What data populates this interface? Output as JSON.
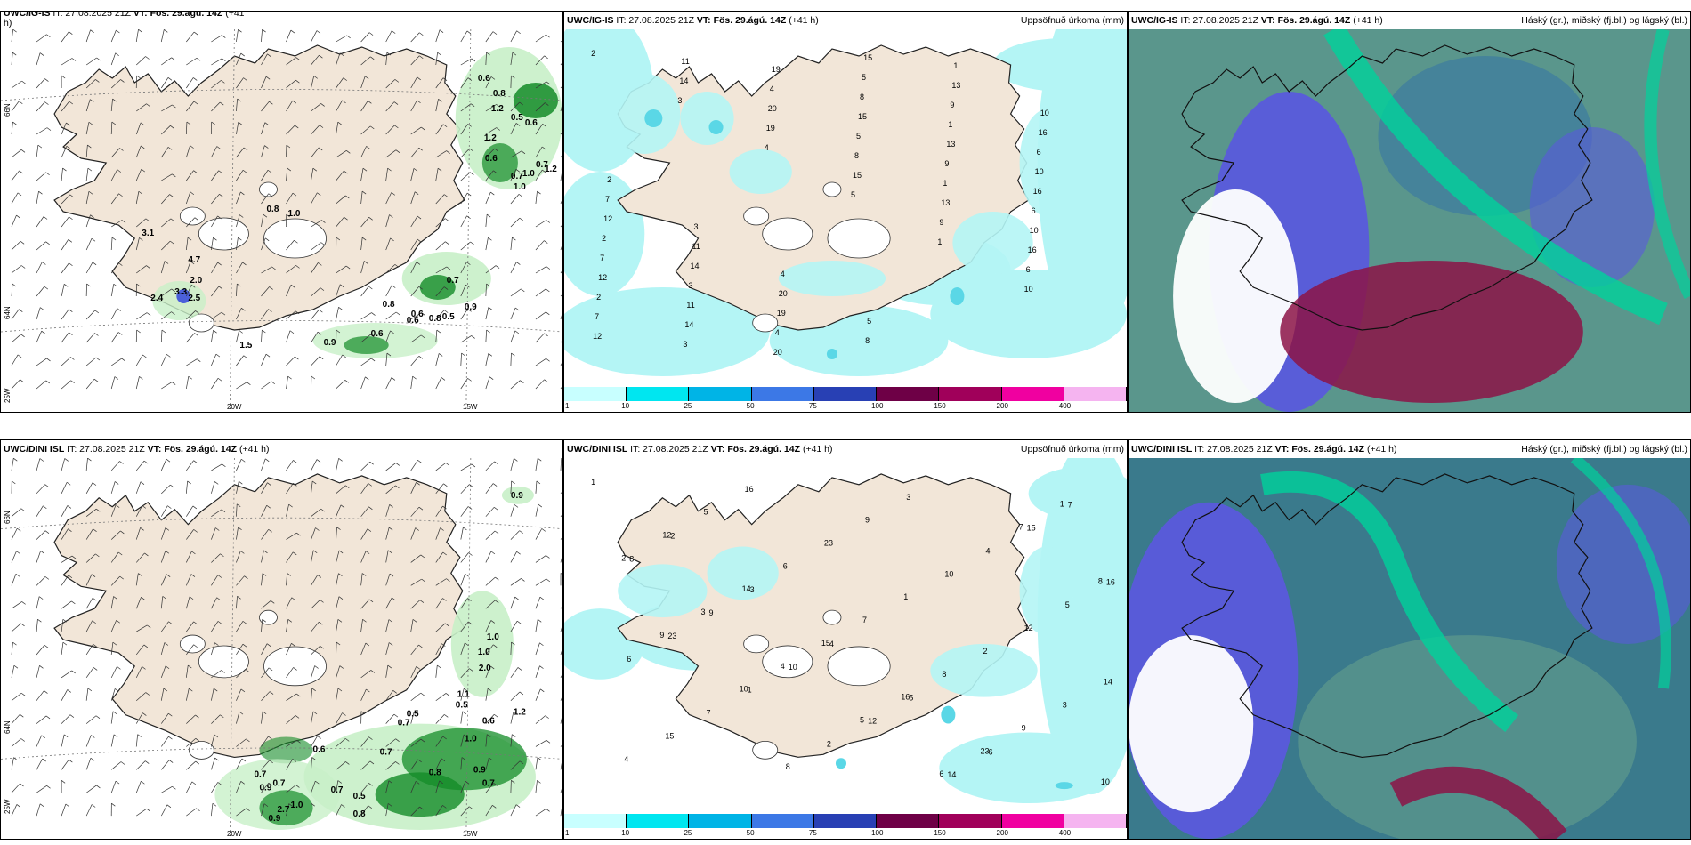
{
  "panels": {
    "p1": {
      "title_bold": "UWC/IG-IS",
      "title_rest": " IT: 27.08.2025 21Z ",
      "vt_bold": "VT: Fös. 29.ágú. 14Z",
      "lead": " (+41",
      "extra": "h)"
    },
    "p2": {
      "title_bold": "UWC/IG-IS",
      "title_rest": " IT: 27.08.2025 21Z ",
      "vt_bold": "VT: Fös. 29.ágú. 14Z",
      "lead": " (+41 h)",
      "right": "Uppsöfnuð úrkoma (mm)"
    },
    "p3": {
      "title_bold": "UWC/IG-IS",
      "title_rest": " IT: 27.08.2025 21Z ",
      "vt_bold": "VT: Fös. 29.ágú. 14Z",
      "lead": " (+41 h)",
      "right": "Háský (gr.), miðský (fj.bl.) og lágský (bl.)"
    },
    "p4": {
      "title_bold": "UWC/DINI ISL",
      "title_rest": " IT: 27.08.2025 21Z ",
      "vt_bold": "VT: Fös. 29.ágú. 14Z",
      "lead": " (+41 h)"
    },
    "p5": {
      "title_bold": "UWC/DINI ISL",
      "title_rest": " IT: 27.08.2025 21Z ",
      "vt_bold": "VT: Fös. 29.ágú. 14Z",
      "lead": " (+41 h)",
      "right": "Uppsöfnuð úrkoma (mm)"
    },
    "p6": {
      "title_bold": "UWC/DINI ISL",
      "title_rest": " IT: 27.08.2025 21Z ",
      "vt_bold": "VT: Fös. 29.ágú. 14Z",
      "lead": " (+41 h)",
      "right": "Háský (gr.), miðský (fj.bl.) og lágský (bl.)"
    }
  },
  "axis_labels": {
    "lat66": "66N",
    "lat64": "64N",
    "lon25": "25W",
    "lon20": "20W",
    "lon15": "15W"
  },
  "colorbar": {
    "ticks": [
      "1",
      "10",
      "25",
      "50",
      "75",
      "100",
      "150",
      "200",
      "400"
    ],
    "colors": [
      "#c8ffff",
      "#00e6f0",
      "#00b4e6",
      "#3c78e6",
      "#2840b4",
      "#6e0046",
      "#a0005a",
      "#f000a0",
      "#f5b4f0"
    ]
  },
  "colors": {
    "land": "#f2e6d8",
    "precip_light": "#b4f5f5",
    "precip_mid": "#5ad7e6",
    "wind_green_light": "#c8f0c8",
    "wind_green_dark": "#148c28",
    "cloud_low": "#5a5adc",
    "cloud_mid": "#5a968c",
    "cloud_high": "#00d29b",
    "cloud_red": "#8c1446"
  },
  "gust_labels_p1": [
    "0.6",
    "0.8",
    "1.2",
    "0.5",
    "0.6",
    "1.2",
    "0.7",
    "1.0",
    "0.6",
    "1.2",
    "0.7",
    "1.0",
    "0.8",
    "1.0",
    "3.1",
    "4.7",
    "2.0",
    "3.3",
    "2.4",
    "2.5",
    "0.8",
    "0.7",
    "0.9",
    "0.6",
    "0.8",
    "0.5",
    "0.6",
    "0.6",
    "0.9",
    "1.5"
  ],
  "gust_labels_p4": [
    "0.9",
    "1.0",
    "1.0",
    "2.0",
    "1.1",
    "0.5",
    "0.5",
    "0.7",
    "1.2",
    "0.6",
    "1.0",
    "0.7",
    "0.6",
    "0.7",
    "0.9",
    "0.7",
    "0.8",
    "0.9",
    "1.0",
    "0.7",
    "0.5",
    "0.9",
    "0.8",
    "0.7",
    "2.7"
  ],
  "precip_labels_p2": [
    "2",
    "3",
    "4",
    "5",
    "1",
    "10",
    "12",
    "14",
    "19",
    "15",
    "9",
    "6",
    "7",
    "11",
    "20",
    "8",
    "13",
    "16"
  ],
  "precip_labels_p5": [
    "1",
    "2",
    "3",
    "4",
    "5",
    "6",
    "7",
    "8",
    "9",
    "10",
    "12",
    "14",
    "15",
    "16",
    "23"
  ]
}
